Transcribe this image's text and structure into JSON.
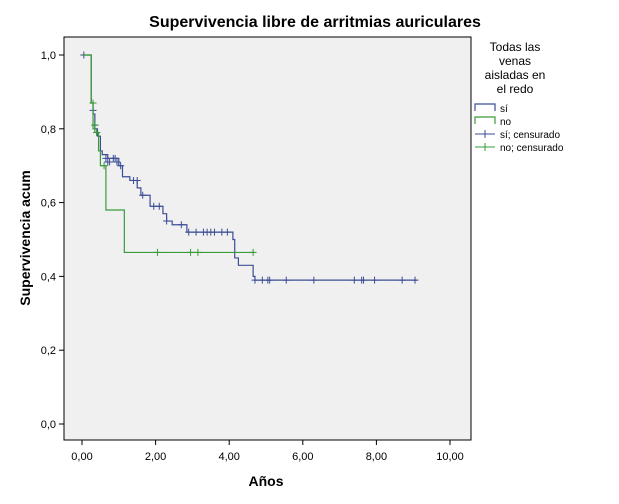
{
  "chart_data": {
    "type": "line",
    "chart_subtype": "kaplan-meier step",
    "title": "Supervivencia libre de arritmias auriculares",
    "xlabel": "Años",
    "ylabel": "Supervivencia acum",
    "xlim": [
      0,
      10
    ],
    "ylim": [
      0,
      1
    ],
    "x_ticks": [
      "0,00",
      "2,00",
      "4,00",
      "6,00",
      "8,00",
      "10,00"
    ],
    "x_tick_values": [
      0,
      2,
      4,
      6,
      8,
      10
    ],
    "y_ticks": [
      "0,0",
      "0,2",
      "0,4",
      "0,6",
      "0,8",
      "1,0"
    ],
    "y_tick_values": [
      0,
      0.2,
      0.4,
      0.6,
      0.8,
      1.0
    ],
    "grid": false,
    "plot_background": "#f0f0f0",
    "legend": {
      "position": "right",
      "title_lines": [
        "Todas las",
        "venas",
        "aisladas en",
        "el redo"
      ],
      "items": [
        "sí",
        "no",
        "sí; censurado",
        "no; censurado"
      ]
    },
    "series": [
      {
        "name": "sí",
        "color": "#3b4d96",
        "steps": [
          [
            0,
            1.0
          ],
          [
            0.25,
            0.87
          ],
          [
            0.3,
            0.84
          ],
          [
            0.35,
            0.8
          ],
          [
            0.42,
            0.78
          ],
          [
            0.5,
            0.74
          ],
          [
            0.55,
            0.73
          ],
          [
            0.7,
            0.72
          ],
          [
            1.0,
            0.7
          ],
          [
            1.1,
            0.67
          ],
          [
            1.3,
            0.66
          ],
          [
            1.5,
            0.64
          ],
          [
            1.6,
            0.62
          ],
          [
            1.85,
            0.59
          ],
          [
            2.2,
            0.57
          ],
          [
            2.3,
            0.55
          ],
          [
            2.45,
            0.54
          ],
          [
            2.6,
            0.54
          ],
          [
            2.85,
            0.52
          ],
          [
            3.0,
            0.52
          ],
          [
            4.1,
            0.5
          ],
          [
            4.15,
            0.45
          ],
          [
            4.25,
            0.43
          ],
          [
            4.65,
            0.4
          ],
          [
            4.7,
            0.39
          ],
          [
            9.1,
            0.39
          ]
        ],
        "censored": [
          [
            0.05,
            1.0
          ],
          [
            0.3,
            0.85
          ],
          [
            0.35,
            0.81
          ],
          [
            0.4,
            0.79
          ],
          [
            0.65,
            0.72
          ],
          [
            0.7,
            0.71
          ],
          [
            0.75,
            0.71
          ],
          [
            0.85,
            0.72
          ],
          [
            0.9,
            0.72
          ],
          [
            0.95,
            0.71
          ],
          [
            1.05,
            0.7
          ],
          [
            1.4,
            0.66
          ],
          [
            1.5,
            0.66
          ],
          [
            1.65,
            0.62
          ],
          [
            1.95,
            0.59
          ],
          [
            2.1,
            0.59
          ],
          [
            2.3,
            0.55
          ],
          [
            2.7,
            0.54
          ],
          [
            2.9,
            0.52
          ],
          [
            3.1,
            0.52
          ],
          [
            3.3,
            0.52
          ],
          [
            3.4,
            0.52
          ],
          [
            3.5,
            0.52
          ],
          [
            3.6,
            0.52
          ],
          [
            3.8,
            0.52
          ],
          [
            3.95,
            0.52
          ],
          [
            4.7,
            0.39
          ],
          [
            4.9,
            0.39
          ],
          [
            5.05,
            0.39
          ],
          [
            5.1,
            0.39
          ],
          [
            5.55,
            0.39
          ],
          [
            6.3,
            0.39
          ],
          [
            7.4,
            0.39
          ],
          [
            7.6,
            0.39
          ],
          [
            7.65,
            0.39
          ],
          [
            7.95,
            0.39
          ],
          [
            8.7,
            0.39
          ],
          [
            9.05,
            0.39
          ]
        ]
      },
      {
        "name": "no",
        "color": "#3a9b3a",
        "steps": [
          [
            0,
            1.0
          ],
          [
            0.25,
            0.87
          ],
          [
            0.3,
            0.8
          ],
          [
            0.35,
            0.79
          ],
          [
            0.45,
            0.74
          ],
          [
            0.5,
            0.7
          ],
          [
            0.65,
            0.7
          ],
          [
            0.65,
            0.58
          ],
          [
            1.15,
            0.58
          ],
          [
            1.15,
            0.465
          ],
          [
            4.7,
            0.465
          ]
        ],
        "censored": [
          [
            0.3,
            0.87
          ],
          [
            0.35,
            0.81
          ],
          [
            0.4,
            0.79
          ],
          [
            0.6,
            0.7
          ],
          [
            2.05,
            0.465
          ],
          [
            2.95,
            0.465
          ],
          [
            3.15,
            0.465
          ],
          [
            4.65,
            0.465
          ]
        ]
      }
    ]
  }
}
